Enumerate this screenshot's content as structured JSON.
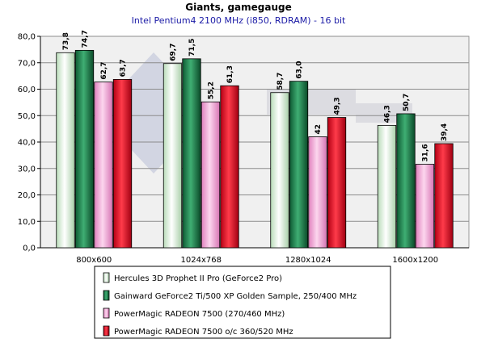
{
  "chart_data": {
    "type": "bar",
    "title": "Giants, gamegauge",
    "subtitle": "Intel Pentium4 2100 MHz (i850, RDRAM) - 16 bit",
    "categories": [
      "800x600",
      "1024x768",
      "1280x1024",
      "1600x1200"
    ],
    "ylim": [
      0,
      80
    ],
    "yticks": [
      "0,0",
      "10,0",
      "20,0",
      "30,0",
      "40,0",
      "50,0",
      "60,0",
      "70,0",
      "80,0"
    ],
    "grid": true,
    "legend_position": "bottom",
    "series": [
      {
        "name": "Hercules 3D Prophet II Pro (GeForce2 Pro)",
        "values": [
          73.8,
          69.7,
          58.7,
          46.3
        ],
        "labels": [
          "73,8",
          "69,7",
          "58,7",
          "46,3"
        ],
        "color": "#d8f0d8"
      },
      {
        "name": "Gainward GeForce2 Ti/500 XP Golden Sample, 250/400 MHz",
        "values": [
          74.7,
          71.5,
          63.0,
          50.7
        ],
        "labels": [
          "74,7",
          "71,5",
          "63,0",
          "50,7"
        ],
        "color": "#1f7a4a"
      },
      {
        "name": "PowerMagic RADEON 7500 (270/460 MHz)",
        "values": [
          62.7,
          55.2,
          42,
          31.6
        ],
        "labels": [
          "62,7",
          "55,2",
          "42",
          "31,6"
        ],
        "color": "#f2a6d6"
      },
      {
        "name": "PowerMagic RADEON 7500 o/c 360/520 MHz",
        "values": [
          63.7,
          61.3,
          49.3,
          39.4
        ],
        "labels": [
          "63,7",
          "61,3",
          "49,3",
          "39,4"
        ],
        "color": "#e0001a"
      }
    ]
  }
}
